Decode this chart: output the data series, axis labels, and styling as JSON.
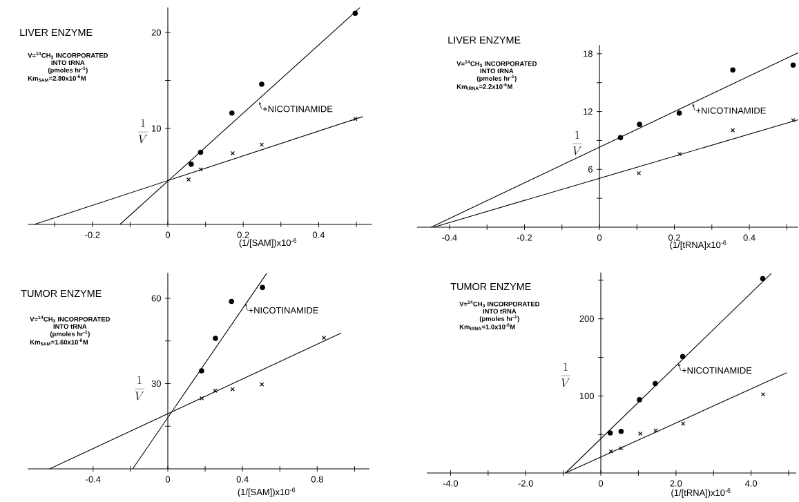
{
  "chart_data": [
    {
      "type": "scatter",
      "title": "LIVER ENZYME",
      "xlabel": "(1/[SAM])x10$^{-6}$",
      "ylabel": "\\frac{1}{V}",
      "annotations": [
        "V=$^{14}$CH$_{3}$ INCORPORATED",
        "INTO tRNA",
        "(pmoles hr$^{-1}$)",
        "Km$_{SAM}$=2.80x10$^{-6}$M",
        {
          "text": "+NICOTINAMIDE",
          "x": 0.243,
          "y": 12.75
        }
      ],
      "xlim": [
        -0.371,
        0.541
      ],
      "ylim": [
        0,
        22.6
      ],
      "xticks": [
        {
          "value": -0.3,
          "label": null
        },
        -0.2,
        {
          "value": -0.1,
          "label": null
        },
        0,
        {
          "value": 0.1,
          "label": null
        },
        0.2,
        {
          "value": 0.3,
          "label": null
        },
        0.4,
        {
          "value": 0.5,
          "label": null
        }
      ],
      "yticks": [
        10,
        {
          "value": 15,
          "label": null
        },
        20
      ],
      "series": [
        {
          "marker": "circle",
          "color": "#000000",
          "x": [
            0.062,
            0.087,
            0.17,
            0.249,
            0.497
          ],
          "values": [
            6.27,
            7.52,
            11.6,
            14.6,
            22.0
          ]
        },
        {
          "type": "line",
          "marker": "none",
          "color": "#000000",
          "x": [
            -0.127,
            0.51
          ],
          "values": [
            0,
            22.6
          ]
        },
        {
          "marker": "cross",
          "color": "#000000",
          "x": [
            0.055,
            0.087,
            0.172,
            0.249,
            0.497
          ],
          "values": [
            4.67,
            5.73,
            7.41,
            8.32,
            10.99
          ]
        },
        {
          "type": "line",
          "marker": "none",
          "color": "#000000",
          "x": [
            -0.354,
            0.517
          ],
          "values": [
            0,
            11.23
          ]
        }
      ]
    },
    {
      "type": "scatter",
      "title": "LIVER ENZYME",
      "xlabel": "(1/[tRNA]x10$^{-6}$",
      "ylabel": "\\frac{1}{V}",
      "annotations": [
        "V=$^{14}$CH$_{3}$ INCORPORATED",
        "INTO tRNA",
        "(pmoles hr$^{-1}$)",
        "Km$_{tRNA}$=2.2x10$^{-6}$M",
        {
          "text": "+NICOTINAMIDE",
          "x": 0.249,
          "y": 12.82
        }
      ],
      "xlim": [
        -0.487,
        0.53
      ],
      "ylim": [
        0,
        18.9
      ],
      "xticks": [
        -0.4,
        {
          "value": -0.3,
          "label": null
        },
        -0.2,
        {
          "value": -0.1,
          "label": null
        },
        0,
        {
          "value": 0.1,
          "label": null
        },
        0.2,
        {
          "value": 0.3,
          "label": null
        },
        0.4,
        {
          "value": 0.5,
          "label": null
        }
      ],
      "yticks": [
        {
          "value": 3,
          "label": null
        },
        6,
        {
          "value": 9,
          "label": null
        },
        12,
        {
          "value": 15,
          "label": null
        },
        18
      ],
      "series": [
        {
          "marker": "circle",
          "color": "#000000",
          "x": [
            0.056,
            0.107,
            0.213,
            0.356,
            0.517
          ],
          "values": [
            9.29,
            10.67,
            11.84,
            16.32,
            16.83
          ]
        },
        {
          "type": "line",
          "marker": "none",
          "color": "#000000",
          "x": [
            -0.449,
            0.53
          ],
          "values": [
            0,
            18.1
          ]
        },
        {
          "marker": "cross",
          "color": "#000000",
          "x": [
            0.105,
            0.214,
            0.356,
            0.517
          ],
          "values": [
            5.6,
            7.59,
            10.06,
            11.1
          ]
        },
        {
          "type": "line",
          "marker": "none",
          "color": "#000000",
          "x": [
            -0.442,
            0.53
          ],
          "values": [
            0,
            11.15
          ]
        }
      ]
    },
    {
      "type": "scatter",
      "title": "TUMOR ENZYME",
      "xlabel": "(1/[SAM])x10$^{-6}$",
      "ylabel": "\\frac{1}{V}",
      "annotations": [
        "V=$^{14}$CH$_{3}$ INCORPORATED",
        "INTO tRNA",
        "(pmoles hr$^{-1}$)",
        "Km$_{SAM}$=1.60x10$^{-6}$M",
        {
          "text": "+NICOTINAMIDE",
          "x": 0.415,
          "y": 58.2
        }
      ],
      "xlim": [
        -0.75,
        1.08
      ],
      "ylim": [
        0,
        69
      ],
      "xticks": [
        -0.4,
        {
          "value": -0.2,
          "label": null
        },
        0,
        {
          "value": 0.2,
          "label": null
        },
        0.4,
        {
          "value": 0.6,
          "label": null
        },
        0.8,
        {
          "value": 1.0,
          "label": null
        }
      ],
      "yticks": [
        {
          "value": 15,
          "label": null
        },
        30,
        {
          "value": 45,
          "label": null
        },
        60
      ],
      "series": [
        {
          "marker": "circle",
          "color": "#000000",
          "x": [
            0.181,
            0.255,
            0.341,
            0.507
          ],
          "values": [
            34.5,
            45.9,
            58.9,
            63.8
          ]
        },
        {
          "type": "line",
          "marker": "none",
          "color": "#000000",
          "x": [
            -0.188,
            0.529
          ],
          "values": [
            0,
            68.7
          ]
        },
        {
          "marker": "cross",
          "color": "#000000",
          "x": [
            0.182,
            0.253,
            0.347,
            0.504,
            0.836
          ],
          "values": [
            24.8,
            27.5,
            28.0,
            29.7,
            46.1
          ]
        },
        {
          "type": "line",
          "marker": "none",
          "color": "#000000",
          "x": [
            -0.633,
            0.929
          ],
          "values": [
            0,
            47.8
          ]
        }
      ]
    },
    {
      "type": "scatter",
      "title": "TUMOR ENZYME",
      "xlabel": "(1/[tRNA])x10$^{-6}$",
      "ylabel": "\\frac{1}{V}",
      "annotations": [
        "V=$^{14}$CH$_{3}$ INCORPORATED",
        "INTO tRNA",
        "(pmoles hr$^{-1}$)",
        "Km$_{tRNA}$=1.0x10$^{-6}$M",
        {
          "text": "+NICOTINAMIDE",
          "x": 2.07,
          "y": 142
        }
      ],
      "xlim": [
        -4.63,
        5.2
      ],
      "ylim": [
        0,
        260
      ],
      "xticks": [
        {
          "value": -4,
          "label": "-4.0"
        },
        {
          "value": -3,
          "label": null
        },
        {
          "value": -2,
          "label": "-2.0"
        },
        {
          "value": -1,
          "label": null
        },
        0,
        {
          "value": 1,
          "label": null
        },
        {
          "value": 2,
          "label": "2.0"
        },
        {
          "value": 3,
          "label": null
        },
        {
          "value": 4,
          "label": "4.0"
        },
        {
          "value": 5,
          "label": null
        }
      ],
      "yticks": [
        {
          "value": 50,
          "label": null
        },
        100,
        {
          "value": 150,
          "label": null
        },
        200,
        {
          "value": 250,
          "label": null
        }
      ],
      "series": [
        {
          "marker": "circle",
          "color": "#000000",
          "x": [
            0.25,
            0.54,
            1.03,
            1.45,
            2.18,
            4.31
          ],
          "values": [
            52,
            54,
            95,
            116,
            151,
            252
          ]
        },
        {
          "type": "line",
          "marker": "none",
          "color": "#000000",
          "x": [
            -0.94,
            4.54
          ],
          "values": [
            0,
            259
          ]
        },
        {
          "marker": "cross",
          "color": "#000000",
          "x": [
            0.27,
            0.54,
            1.05,
            1.46,
            2.19,
            4.32
          ],
          "values": [
            28,
            32,
            51,
            55,
            64,
            102
          ]
        },
        {
          "type": "line",
          "marker": "none",
          "color": "#000000",
          "x": [
            -0.94,
            4.95
          ],
          "values": [
            0,
            130
          ]
        }
      ]
    }
  ]
}
